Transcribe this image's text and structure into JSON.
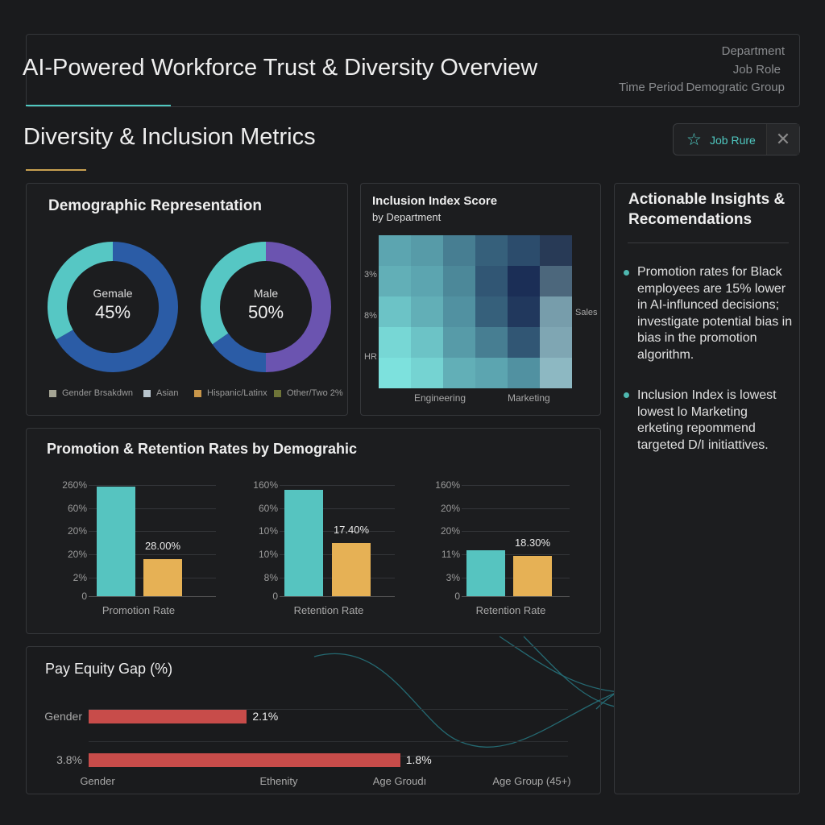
{
  "header": {
    "title": "AI-Powered Workforce Trust & Diversity Overview",
    "filters": [
      "Department",
      "Job Role",
      "Time Period",
      "Demogratic Group"
    ]
  },
  "section": {
    "title": "Diversity & Inclusion Metrics",
    "button_label": "Job Rure",
    "accent": "#4fc8c0",
    "gold": "#c8a050"
  },
  "demographics": {
    "title": "Demographic Representation",
    "donuts": [
      {
        "label": "Gemale",
        "value": "45%",
        "segments": [
          {
            "color": "#2b5ca6",
            "fraction": 0.667
          },
          {
            "color": "#56c7c4",
            "fraction": 0.333
          }
        ]
      },
      {
        "label": "Male",
        "value": "50%",
        "segments": [
          {
            "color": "#6b54b0",
            "fraction": 0.5
          },
          {
            "color": "#2b5ca6",
            "fraction": 0.153
          },
          {
            "color": "#56c7c4",
            "fraction": 0.347
          }
        ]
      }
    ],
    "legend": [
      {
        "label": "Gender Brsakdwn",
        "color": "#a4a494"
      },
      {
        "label": "Asian",
        "color": "#b8c4cc"
      },
      {
        "label": "Hispanic/Latinx",
        "color": "#c8964a"
      },
      {
        "label": "Other/Two 2%",
        "color": "#6e7438"
      }
    ]
  },
  "inclusion": {
    "title": "Inclusion Index Score",
    "subtitle": "by Department",
    "y_labels": [
      "3%",
      "8%",
      "HR"
    ],
    "right_label": "Sales",
    "x_labels": [
      "Engineering",
      "Marketing"
    ]
  },
  "chart_data": [
    {
      "type": "heatmap",
      "title": "Inclusion Index Score",
      "subtitle": "by Department",
      "x_labels": [
        "Engineering",
        "Marketing"
      ],
      "y_labels": [
        "3%",
        "8%",
        "HR"
      ],
      "right_label": "Sales",
      "values": [
        [
          0.35,
          0.4,
          0.55,
          0.7,
          0.8,
          0.9
        ],
        [
          0.3,
          0.35,
          0.5,
          0.75,
          0.95,
          0.65
        ],
        [
          0.2,
          0.3,
          0.45,
          0.7,
          0.9,
          0.35
        ],
        [
          0.1,
          0.2,
          0.4,
          0.55,
          0.75,
          0.3
        ],
        [
          0.05,
          0.12,
          0.3,
          0.35,
          0.45,
          0.2
        ]
      ],
      "columns_grey": [
        5
      ]
    },
    {
      "type": "bar",
      "categories": [
        "Promotion Rate"
      ],
      "y_ticks": [
        "260%",
        "60%",
        "20%",
        "20%",
        "2%",
        "0"
      ],
      "values_pct_of_axis": [
        98.5,
        33
      ],
      "value_label": "28.00%",
      "colors": [
        "#56c4c0",
        "#e6b155"
      ]
    },
    {
      "type": "bar",
      "categories": [
        "Retention Rate"
      ],
      "y_ticks": [
        "160%",
        "60%",
        "10%",
        "10%",
        "8%",
        "0"
      ],
      "values_pct_of_axis": [
        96,
        48
      ],
      "value_label": "17.40%",
      "colors": [
        "#56c4c0",
        "#e6b155"
      ]
    },
    {
      "type": "bar",
      "categories": [
        "Retention Rate"
      ],
      "y_ticks": [
        "160%",
        "20%",
        "20%",
        "11%",
        "3%",
        "0"
      ],
      "values_pct_of_axis": [
        41,
        36
      ],
      "value_label": "18.30%",
      "colors": [
        "#56c4c0",
        "#e6b155"
      ]
    },
    {
      "type": "bar",
      "orientation": "horizontal",
      "title": "Pay Equity Gap (%)",
      "rows": [
        {
          "label": "Gender",
          "value_label": "2.1%",
          "extent_fraction": 0.33
        },
        {
          "label": "3.8%",
          "value_label": "1.8%",
          "extent_fraction": 0.65
        }
      ],
      "x_labels": [
        "Gender",
        "Ethenity",
        "Age Groudı",
        "Age Group (45+)"
      ],
      "color": "#c84c4a"
    }
  ],
  "promotion": {
    "title": "Promotion & Retention Rates by Demograhic"
  },
  "pay": {
    "title": "Pay Equity Gap (%)"
  },
  "insights": {
    "title": "Actionable Insights & Recomendations",
    "items": [
      "Promotion rates for Black employees are 15% lower in AI-influnced decisions; investigate potential bias in bias in the promotion algorithm.",
      "Inclusion Index is lowest lowest lo Marketing erketing repommend targeted D/I initiattives."
    ]
  }
}
